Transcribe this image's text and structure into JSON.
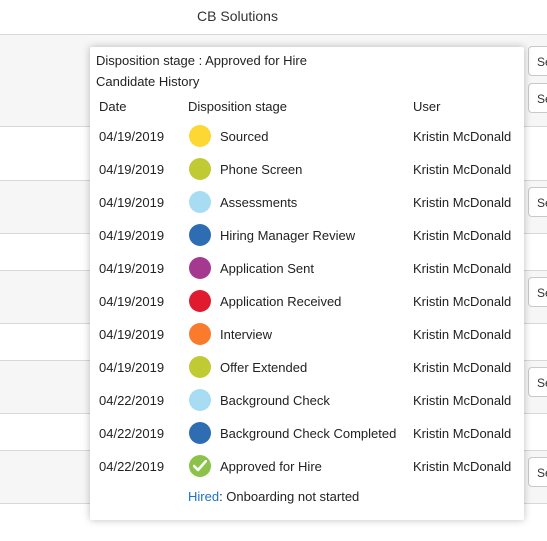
{
  "header": {
    "title": "CB Solutions"
  },
  "side_buttons": [
    {
      "label": "Se"
    },
    {
      "label": "Se"
    },
    {
      "label": "Se"
    },
    {
      "label": "Se"
    },
    {
      "label": "Se"
    },
    {
      "label": "Se"
    }
  ],
  "popup": {
    "stage_line": "Disposition stage : Approved for Hire",
    "history_title": "Candidate History",
    "columns": {
      "date": "Date",
      "stage": "Disposition stage",
      "user": "User"
    },
    "rows": [
      {
        "date": "04/19/2019",
        "stage": "Sourced",
        "user": "Kristin McDonald",
        "color": "#fdd835"
      },
      {
        "date": "04/19/2019",
        "stage": "Phone Screen",
        "user": "Kristin McDonald",
        "color": "#c0ca33"
      },
      {
        "date": "04/19/2019",
        "stage": "Assessments",
        "user": "Kristin McDonald",
        "color": "#a7dcf2"
      },
      {
        "date": "04/19/2019",
        "stage": "Hiring Manager Review",
        "user": "Kristin McDonald",
        "color": "#2f6db3"
      },
      {
        "date": "04/19/2019",
        "stage": "Application Sent",
        "user": "Kristin McDonald",
        "color": "#a5398f"
      },
      {
        "date": "04/19/2019",
        "stage": "Application Received",
        "user": "Kristin McDonald",
        "color": "#e01b2f"
      },
      {
        "date": "04/19/2019",
        "stage": "Interview",
        "user": "Kristin McDonald",
        "color": "#fb7b2d"
      },
      {
        "date": "04/19/2019",
        "stage": "Offer Extended",
        "user": "Kristin McDonald",
        "color": "#c0ca33"
      },
      {
        "date": "04/22/2019",
        "stage": "Background Check",
        "user": "Kristin McDonald",
        "color": "#a7dcf2"
      },
      {
        "date": "04/22/2019",
        "stage": "Background Check Completed",
        "user": "Kristin McDonald",
        "color": "#2f6db3"
      },
      {
        "date": "04/22/2019",
        "stage": "Approved for Hire",
        "user": "Kristin McDonald",
        "color": "#8bc34a",
        "icon": "check-icon"
      }
    ],
    "footer": {
      "link": "Hired",
      "text": ": Onboarding not started"
    }
  }
}
